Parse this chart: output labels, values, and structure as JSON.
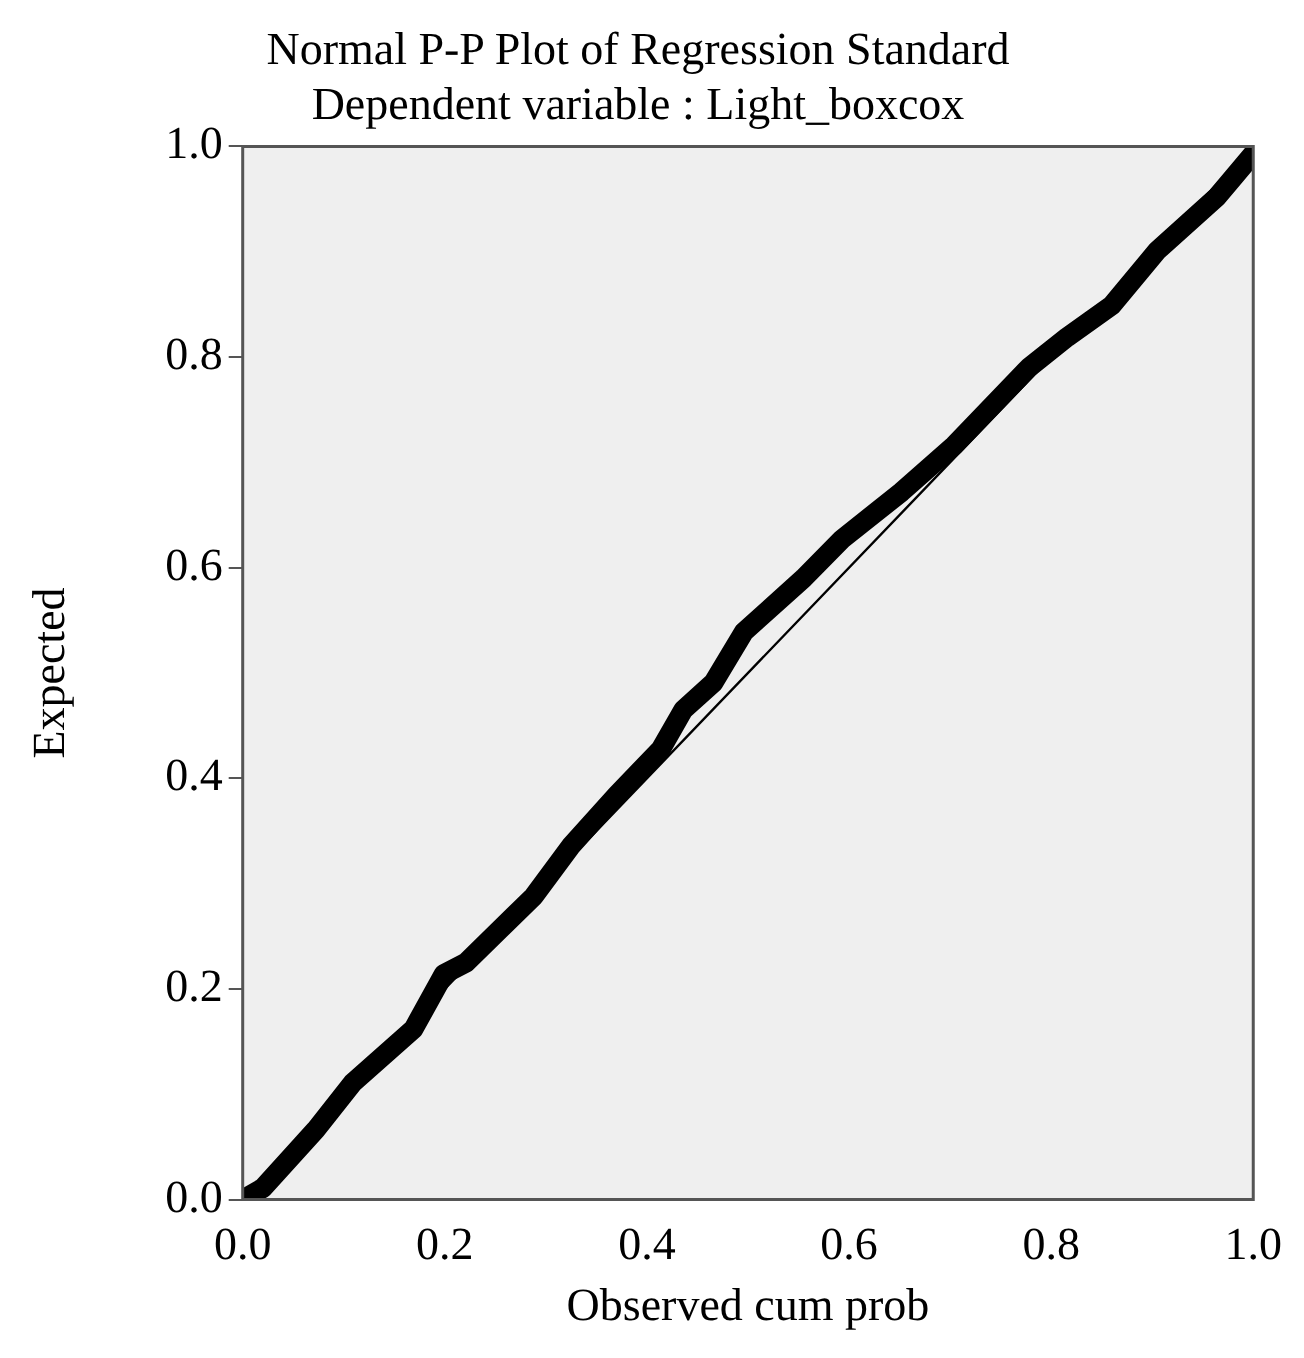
{
  "chart_data": {
    "type": "line",
    "title": "Normal P-P Plot of Regression Standard",
    "subtitle": "Dependent variable : Light_boxcox",
    "xlabel": "Observed cum prob",
    "ylabel": "Expected",
    "xlim": [
      0,
      1
    ],
    "ylim": [
      0,
      1
    ],
    "xticks": [
      {
        "value": 0,
        "label": "0.0"
      },
      {
        "value": 0.2,
        "label": "0.2"
      },
      {
        "value": 0.4,
        "label": "0.4"
      },
      {
        "value": 0.6,
        "label": "0.6"
      },
      {
        "value": 0.8,
        "label": "0.8"
      },
      {
        "value": 1,
        "label": "1.0"
      }
    ],
    "yticks": [
      {
        "value": 0,
        "label": "0.0"
      },
      {
        "value": 0.2,
        "label": "0.2"
      },
      {
        "value": 0.4,
        "label": "0.4"
      },
      {
        "value": 0.6,
        "label": "0.6"
      },
      {
        "value": 0.8,
        "label": "0.8"
      },
      {
        "value": 1,
        "label": "1.0"
      }
    ],
    "grid": false,
    "legend": false,
    "marker": "none",
    "series": [
      {
        "color": "#000000",
        "x": [
          0,
          0.02,
          0.072,
          0.109,
          0.169,
          0.199,
          0.221,
          0.288,
          0.325,
          0.37,
          0.414,
          0.436,
          0.466,
          0.496,
          0.555,
          0.593,
          0.652,
          0.704,
          0.778,
          0.816,
          0.86,
          0.905,
          0.964,
          1.0
        ],
        "values": [
          0,
          0.011,
          0.066,
          0.111,
          0.162,
          0.214,
          0.225,
          0.288,
          0.336,
          0.384,
          0.428,
          0.465,
          0.491,
          0.539,
          0.59,
          0.627,
          0.672,
          0.716,
          0.79,
          0.819,
          0.849,
          0.901,
          0.952,
          0.993
        ]
      },
      {
        "type": "line",
        "color": "#000000",
        "x": [
          0,
          1
        ],
        "values": [
          0,
          1
        ]
      }
    ]
  }
}
